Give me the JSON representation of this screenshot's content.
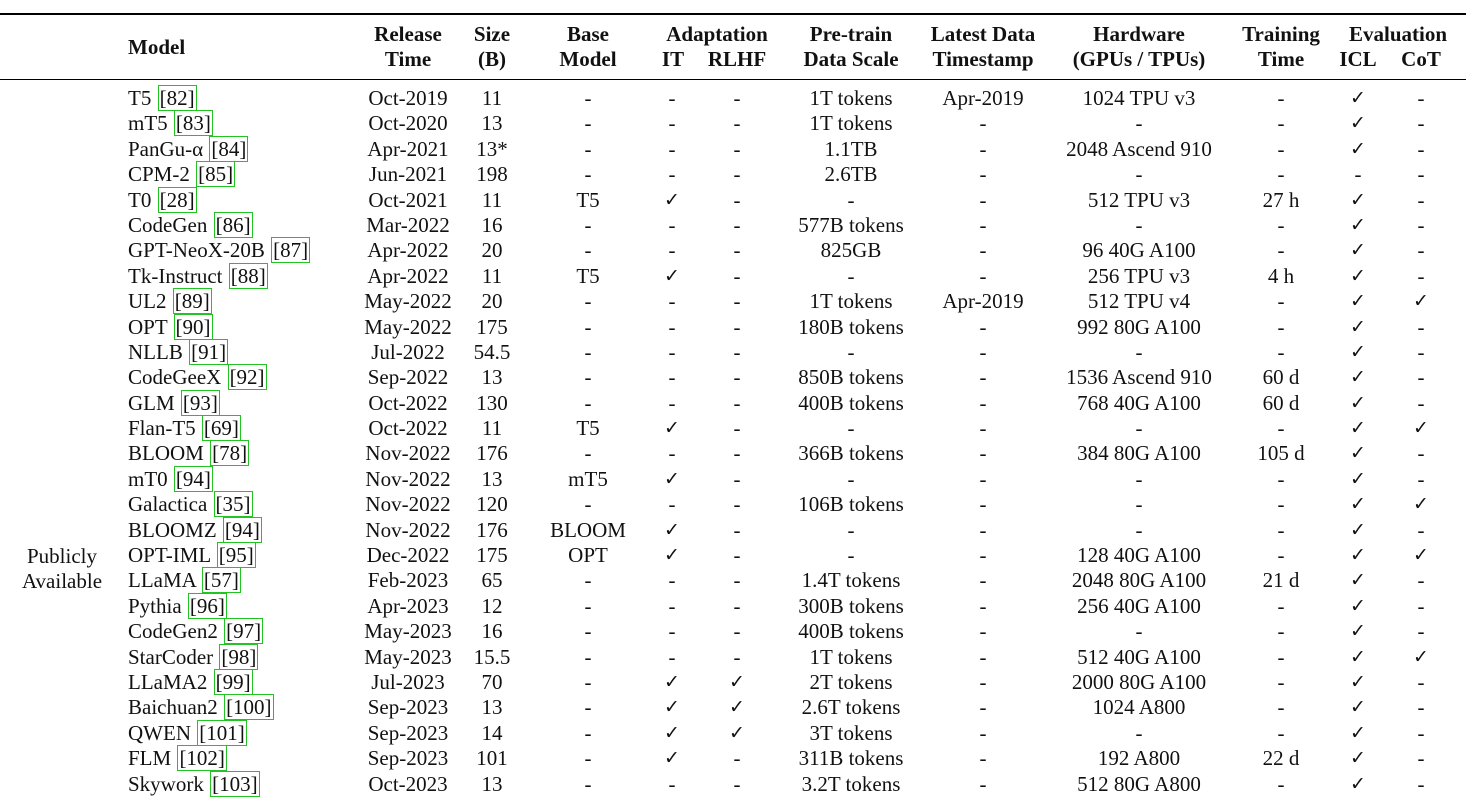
{
  "headers": {
    "model": "Model",
    "release": [
      "Release",
      "Time"
    ],
    "size": [
      "Size",
      "(B)"
    ],
    "base": [
      "Base",
      "Model"
    ],
    "adaptation": "Adaptation",
    "it": "IT",
    "rlhf": "RLHF",
    "pretrain": [
      "Pre-train",
      "Data Scale"
    ],
    "timestamp": [
      "Latest Data",
      "Timestamp"
    ],
    "hardware": [
      "Hardware",
      "(GPUs / TPUs)"
    ],
    "training": [
      "Training",
      "Time"
    ],
    "evaluation": "Evaluation",
    "icl": "ICL",
    "cot": "CoT"
  },
  "group_label": [
    "Publicly",
    "Available"
  ],
  "check_symbol": "✓",
  "rows": [
    {
      "model": "T5",
      "ref": "[82]",
      "release": "Oct-2019",
      "size": "11",
      "base": "-",
      "it": "-",
      "rlhf": "-",
      "pretrain": "1T tokens",
      "timestamp": "Apr-2019",
      "hardware": "1024 TPU v3",
      "training": "-",
      "icl": "✓",
      "cot": "-"
    },
    {
      "model": "mT5",
      "ref": "[83]",
      "release": "Oct-2020",
      "size": "13",
      "base": "-",
      "it": "-",
      "rlhf": "-",
      "pretrain": "1T tokens",
      "timestamp": "-",
      "hardware": "-",
      "training": "-",
      "icl": "✓",
      "cot": "-"
    },
    {
      "model": "PanGu-α",
      "ref": "[84]",
      "release": "Apr-2021",
      "size": "13*",
      "base": "-",
      "it": "-",
      "rlhf": "-",
      "pretrain": "1.1TB",
      "timestamp": "-",
      "hardware": "2048 Ascend 910",
      "training": "-",
      "icl": "✓",
      "cot": "-"
    },
    {
      "model": "CPM-2",
      "ref": "[85]",
      "release": "Jun-2021",
      "size": "198",
      "base": "-",
      "it": "-",
      "rlhf": "-",
      "pretrain": "2.6TB",
      "timestamp": "-",
      "hardware": "-",
      "training": "-",
      "icl": "-",
      "cot": "-"
    },
    {
      "model": "T0",
      "ref": "[28]",
      "release": "Oct-2021",
      "size": "11",
      "base": "T5",
      "it": "✓",
      "rlhf": "-",
      "pretrain": "-",
      "timestamp": "-",
      "hardware": "512 TPU v3",
      "training": "27 h",
      "icl": "✓",
      "cot": "-"
    },
    {
      "model": "CodeGen",
      "ref": "[86]",
      "release": "Mar-2022",
      "size": "16",
      "base": "-",
      "it": "-",
      "rlhf": "-",
      "pretrain": "577B tokens",
      "timestamp": "-",
      "hardware": "-",
      "training": "-",
      "icl": "✓",
      "cot": "-"
    },
    {
      "model": "GPT-NeoX-20B",
      "ref": "[87]",
      "release": "Apr-2022",
      "size": "20",
      "base": "-",
      "it": "-",
      "rlhf": "-",
      "pretrain": "825GB",
      "timestamp": "-",
      "hardware": "96 40G A100",
      "training": "-",
      "icl": "✓",
      "cot": "-"
    },
    {
      "model": "Tk-Instruct",
      "ref": "[88]",
      "release": "Apr-2022",
      "size": "11",
      "base": "T5",
      "it": "✓",
      "rlhf": "-",
      "pretrain": "-",
      "timestamp": "-",
      "hardware": "256 TPU v3",
      "training": "4 h",
      "icl": "✓",
      "cot": "-"
    },
    {
      "model": "UL2",
      "ref": "[89]",
      "release": "May-2022",
      "size": "20",
      "base": "-",
      "it": "-",
      "rlhf": "-",
      "pretrain": "1T tokens",
      "timestamp": "Apr-2019",
      "hardware": "512 TPU v4",
      "training": "-",
      "icl": "✓",
      "cot": "✓"
    },
    {
      "model": "OPT",
      "ref": "[90]",
      "release": "May-2022",
      "size": "175",
      "base": "-",
      "it": "-",
      "rlhf": "-",
      "pretrain": "180B tokens",
      "timestamp": "-",
      "hardware": "992 80G A100",
      "training": "-",
      "icl": "✓",
      "cot": "-"
    },
    {
      "model": "NLLB",
      "ref": "[91]",
      "release": "Jul-2022",
      "size": "54.5",
      "base": "-",
      "it": "-",
      "rlhf": "-",
      "pretrain": "-",
      "timestamp": "-",
      "hardware": "-",
      "training": "-",
      "icl": "✓",
      "cot": "-"
    },
    {
      "model": "CodeGeeX",
      "ref": "[92]",
      "release": "Sep-2022",
      "size": "13",
      "base": "-",
      "it": "-",
      "rlhf": "-",
      "pretrain": "850B tokens",
      "timestamp": "-",
      "hardware": "1536 Ascend 910",
      "training": "60 d",
      "icl": "✓",
      "cot": "-"
    },
    {
      "model": "GLM",
      "ref": "[93]",
      "release": "Oct-2022",
      "size": "130",
      "base": "-",
      "it": "-",
      "rlhf": "-",
      "pretrain": "400B tokens",
      "timestamp": "-",
      "hardware": "768 40G A100",
      "training": "60 d",
      "icl": "✓",
      "cot": "-"
    },
    {
      "model": "Flan-T5",
      "ref": "[69]",
      "release": "Oct-2022",
      "size": "11",
      "base": "T5",
      "it": "✓",
      "rlhf": "-",
      "pretrain": "-",
      "timestamp": "-",
      "hardware": "-",
      "training": "-",
      "icl": "✓",
      "cot": "✓"
    },
    {
      "model": "BLOOM",
      "ref": "[78]",
      "release": "Nov-2022",
      "size": "176",
      "base": "-",
      "it": "-",
      "rlhf": "-",
      "pretrain": "366B tokens",
      "timestamp": "-",
      "hardware": "384 80G A100",
      "training": "105 d",
      "icl": "✓",
      "cot": "-"
    },
    {
      "model": "mT0",
      "ref": "[94]",
      "release": "Nov-2022",
      "size": "13",
      "base": "mT5",
      "it": "✓",
      "rlhf": "-",
      "pretrain": "-",
      "timestamp": "-",
      "hardware": "-",
      "training": "-",
      "icl": "✓",
      "cot": "-"
    },
    {
      "model": "Galactica",
      "ref": "[35]",
      "release": "Nov-2022",
      "size": "120",
      "base": "-",
      "it": "-",
      "rlhf": "-",
      "pretrain": "106B tokens",
      "timestamp": "-",
      "hardware": "-",
      "training": "-",
      "icl": "✓",
      "cot": "✓"
    },
    {
      "model": "BLOOMZ",
      "ref": "[94]",
      "release": "Nov-2022",
      "size": "176",
      "base": "BLOOM",
      "it": "✓",
      "rlhf": "-",
      "pretrain": "-",
      "timestamp": "-",
      "hardware": "-",
      "training": "-",
      "icl": "✓",
      "cot": "-"
    },
    {
      "model": "OPT-IML",
      "ref": "[95]",
      "release": "Dec-2022",
      "size": "175",
      "base": "OPT",
      "it": "✓",
      "rlhf": "-",
      "pretrain": "-",
      "timestamp": "-",
      "hardware": "128 40G A100",
      "training": "-",
      "icl": "✓",
      "cot": "✓"
    },
    {
      "model": "LLaMA",
      "ref": "[57]",
      "release": "Feb-2023",
      "size": "65",
      "base": "-",
      "it": "-",
      "rlhf": "-",
      "pretrain": "1.4T tokens",
      "timestamp": "-",
      "hardware": "2048 80G A100",
      "training": "21 d",
      "icl": "✓",
      "cot": "-"
    },
    {
      "model": "Pythia",
      "ref": "[96]",
      "release": "Apr-2023",
      "size": "12",
      "base": "-",
      "it": "-",
      "rlhf": "-",
      "pretrain": "300B tokens",
      "timestamp": "-",
      "hardware": "256 40G A100",
      "training": "-",
      "icl": "✓",
      "cot": "-"
    },
    {
      "model": "CodeGen2",
      "ref": "[97]",
      "release": "May-2023",
      "size": "16",
      "base": "-",
      "it": "-",
      "rlhf": "-",
      "pretrain": "400B tokens",
      "timestamp": "-",
      "hardware": "-",
      "training": "-",
      "icl": "✓",
      "cot": "-"
    },
    {
      "model": "StarCoder",
      "ref": "[98]",
      "release": "May-2023",
      "size": "15.5",
      "base": "-",
      "it": "-",
      "rlhf": "-",
      "pretrain": "1T tokens",
      "timestamp": "-",
      "hardware": "512 40G A100",
      "training": "-",
      "icl": "✓",
      "cot": "✓"
    },
    {
      "model": "LLaMA2",
      "ref": "[99]",
      "release": "Jul-2023",
      "size": "70",
      "base": "-",
      "it": "✓",
      "rlhf": "✓",
      "pretrain": "2T tokens",
      "timestamp": "-",
      "hardware": "2000 80G A100",
      "training": "-",
      "icl": "✓",
      "cot": "-"
    },
    {
      "model": "Baichuan2",
      "ref": "[100]",
      "release": "Sep-2023",
      "size": "13",
      "base": "-",
      "it": "✓",
      "rlhf": "✓",
      "pretrain": "2.6T tokens",
      "timestamp": "-",
      "hardware": "1024 A800",
      "training": "-",
      "icl": "✓",
      "cot": "-"
    },
    {
      "model": "QWEN",
      "ref": "[101]",
      "release": "Sep-2023",
      "size": "14",
      "base": "-",
      "it": "✓",
      "rlhf": "✓",
      "pretrain": "3T tokens",
      "timestamp": "-",
      "hardware": "-",
      "training": "-",
      "icl": "✓",
      "cot": "-"
    },
    {
      "model": "FLM",
      "ref": "[102]",
      "release": "Sep-2023",
      "size": "101",
      "base": "-",
      "it": "✓",
      "rlhf": "-",
      "pretrain": "311B tokens",
      "timestamp": "-",
      "hardware": "192 A800",
      "training": "22 d",
      "icl": "✓",
      "cot": "-"
    },
    {
      "model": "Skywork",
      "ref": "[103]",
      "release": "Oct-2023",
      "size": "13",
      "base": "-",
      "it": "-",
      "rlhf": "-",
      "pretrain": "3.2T tokens",
      "timestamp": "-",
      "hardware": "512 80G A800",
      "training": "-",
      "icl": "✓",
      "cot": "-"
    }
  ]
}
